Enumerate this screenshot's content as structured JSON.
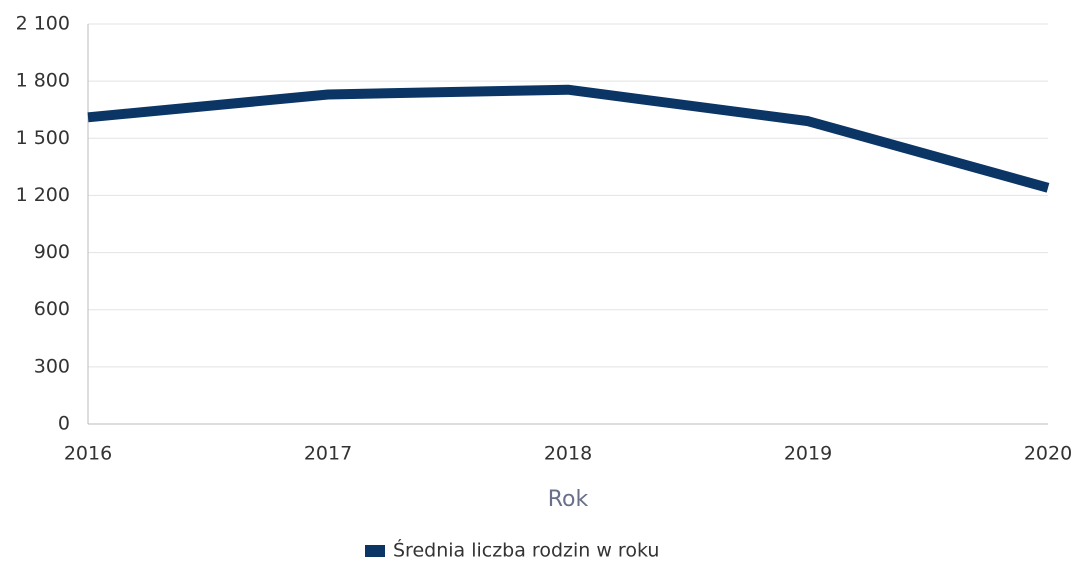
{
  "chart_data": {
    "type": "line",
    "x_label": "Rok",
    "categories": [
      "2016",
      "2017",
      "2018",
      "2019",
      "2020"
    ],
    "series": [
      {
        "name": "Średnia liczba rodzin w roku",
        "color": "#0b3565",
        "values": [
          1610,
          1730,
          1755,
          1590,
          1240
        ]
      }
    ],
    "ylim": [
      0,
      2100
    ],
    "yticks": [
      0,
      300,
      600,
      900,
      {
        "value": 1200,
        "label": "1 200"
      },
      {
        "value": 1500,
        "label": "1 500"
      },
      {
        "value": 1800,
        "label": "1 800"
      },
      {
        "value": 2100,
        "label": "2 100"
      }
    ],
    "grid": true,
    "legend": "bottom"
  }
}
